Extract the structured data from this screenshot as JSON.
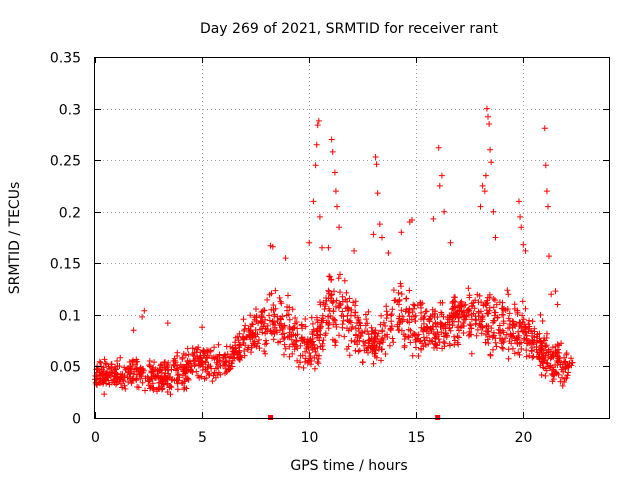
{
  "chart_data": {
    "type": "scatter",
    "title": "Day 269 of 2021, SRMTID for receiver rant",
    "xlabel": "GPS time / hours",
    "ylabel": "SRMTID / TECUs",
    "xlim": [
      0,
      24
    ],
    "ylim": [
      0,
      0.35
    ],
    "xticks": [
      0,
      5,
      10,
      15,
      20
    ],
    "xtick_labels": [
      "0",
      "5",
      "10",
      "15",
      "20"
    ],
    "yticks": [
      0,
      0.05,
      0.1,
      0.15,
      0.2,
      0.25,
      0.3,
      0.35
    ],
    "ytick_labels": [
      "0",
      "0.05",
      "0.1",
      "0.15",
      "0.2",
      "0.25",
      "0.3",
      "0.35"
    ],
    "grid": true,
    "marker": "plus",
    "color": "#ff0000",
    "envelope": [
      {
        "t": 0.0,
        "lo": 0.02,
        "hi": 0.065
      },
      {
        "t": 1.0,
        "lo": 0.02,
        "hi": 0.06
      },
      {
        "t": 2.0,
        "lo": 0.02,
        "hi": 0.07
      },
      {
        "t": 3.0,
        "lo": 0.015,
        "hi": 0.06
      },
      {
        "t": 4.0,
        "lo": 0.02,
        "hi": 0.07
      },
      {
        "t": 5.0,
        "lo": 0.03,
        "hi": 0.08
      },
      {
        "t": 6.0,
        "lo": 0.03,
        "hi": 0.075
      },
      {
        "t": 7.0,
        "lo": 0.05,
        "hi": 0.1
      },
      {
        "t": 8.0,
        "lo": 0.06,
        "hi": 0.13
      },
      {
        "t": 9.0,
        "lo": 0.05,
        "hi": 0.13
      },
      {
        "t": 10.0,
        "lo": 0.03,
        "hi": 0.1
      },
      {
        "t": 11.0,
        "lo": 0.06,
        "hi": 0.16
      },
      {
        "t": 12.0,
        "lo": 0.05,
        "hi": 0.14
      },
      {
        "t": 13.0,
        "lo": 0.04,
        "hi": 0.1
      },
      {
        "t": 14.0,
        "lo": 0.06,
        "hi": 0.14
      },
      {
        "t": 15.0,
        "lo": 0.05,
        "hi": 0.13
      },
      {
        "t": 16.0,
        "lo": 0.05,
        "hi": 0.12
      },
      {
        "t": 17.0,
        "lo": 0.06,
        "hi": 0.14
      },
      {
        "t": 18.0,
        "lo": 0.05,
        "hi": 0.15
      },
      {
        "t": 19.0,
        "lo": 0.05,
        "hi": 0.13
      },
      {
        "t": 20.0,
        "lo": 0.05,
        "hi": 0.12
      },
      {
        "t": 21.0,
        "lo": 0.03,
        "hi": 0.09
      },
      {
        "t": 22.3,
        "lo": 0.02,
        "hi": 0.07
      }
    ],
    "spikes": [
      {
        "t": 1.8,
        "y": 0.085
      },
      {
        "t": 2.2,
        "y": 0.098
      },
      {
        "t": 2.3,
        "y": 0.104
      },
      {
        "t": 3.4,
        "y": 0.092
      },
      {
        "t": 5.0,
        "y": 0.088
      },
      {
        "t": 8.2,
        "y": 0.167
      },
      {
        "t": 8.3,
        "y": 0.166
      },
      {
        "t": 8.9,
        "y": 0.155
      },
      {
        "t": 10.0,
        "y": 0.17
      },
      {
        "t": 10.2,
        "y": 0.21
      },
      {
        "t": 10.3,
        "y": 0.245
      },
      {
        "t": 10.35,
        "y": 0.265
      },
      {
        "t": 10.4,
        "y": 0.284
      },
      {
        "t": 10.45,
        "y": 0.288
      },
      {
        "t": 10.5,
        "y": 0.195
      },
      {
        "t": 10.6,
        "y": 0.165
      },
      {
        "t": 10.9,
        "y": 0.165
      },
      {
        "t": 11.05,
        "y": 0.27
      },
      {
        "t": 11.1,
        "y": 0.258
      },
      {
        "t": 11.2,
        "y": 0.238
      },
      {
        "t": 11.25,
        "y": 0.22
      },
      {
        "t": 11.3,
        "y": 0.205
      },
      {
        "t": 11.4,
        "y": 0.185
      },
      {
        "t": 12.1,
        "y": 0.162
      },
      {
        "t": 13.0,
        "y": 0.178
      },
      {
        "t": 13.1,
        "y": 0.253
      },
      {
        "t": 13.15,
        "y": 0.246
      },
      {
        "t": 13.2,
        "y": 0.218
      },
      {
        "t": 13.3,
        "y": 0.188
      },
      {
        "t": 13.4,
        "y": 0.175
      },
      {
        "t": 13.7,
        "y": 0.16
      },
      {
        "t": 14.3,
        "y": 0.18
      },
      {
        "t": 14.7,
        "y": 0.19
      },
      {
        "t": 14.8,
        "y": 0.192
      },
      {
        "t": 15.8,
        "y": 0.193
      },
      {
        "t": 16.05,
        "y": 0.262
      },
      {
        "t": 16.1,
        "y": 0.225
      },
      {
        "t": 16.2,
        "y": 0.235
      },
      {
        "t": 16.3,
        "y": 0.2
      },
      {
        "t": 16.6,
        "y": 0.17
      },
      {
        "t": 18.0,
        "y": 0.205
      },
      {
        "t": 18.1,
        "y": 0.225
      },
      {
        "t": 18.2,
        "y": 0.22
      },
      {
        "t": 18.25,
        "y": 0.235
      },
      {
        "t": 18.3,
        "y": 0.3
      },
      {
        "t": 18.35,
        "y": 0.292
      },
      {
        "t": 18.4,
        "y": 0.285
      },
      {
        "t": 18.45,
        "y": 0.26
      },
      {
        "t": 18.5,
        "y": 0.248
      },
      {
        "t": 18.6,
        "y": 0.2
      },
      {
        "t": 18.7,
        "y": 0.175
      },
      {
        "t": 19.3,
        "y": 0.12
      },
      {
        "t": 19.8,
        "y": 0.21
      },
      {
        "t": 19.85,
        "y": 0.195
      },
      {
        "t": 19.9,
        "y": 0.185
      },
      {
        "t": 20.0,
        "y": 0.168
      },
      {
        "t": 20.1,
        "y": 0.162
      },
      {
        "t": 20.8,
        "y": 0.1
      },
      {
        "t": 20.9,
        "y": 0.094
      },
      {
        "t": 21.0,
        "y": 0.281
      },
      {
        "t": 21.05,
        "y": 0.245
      },
      {
        "t": 21.1,
        "y": 0.22
      },
      {
        "t": 21.15,
        "y": 0.205
      },
      {
        "t": 21.2,
        "y": 0.157
      },
      {
        "t": 21.3,
        "y": 0.12
      },
      {
        "t": 21.5,
        "y": 0.123
      },
      {
        "t": 21.6,
        "y": 0.11
      }
    ],
    "gap_markers": [
      {
        "t": 8.2,
        "y": 0
      },
      {
        "t": 16.0,
        "y": 0
      }
    ],
    "series_count_approx": 1600
  }
}
